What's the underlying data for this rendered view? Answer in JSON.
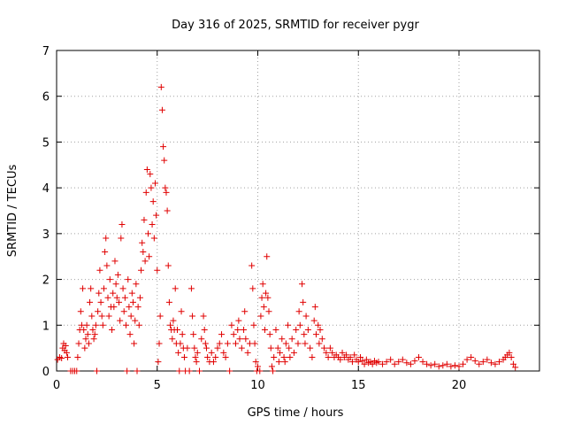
{
  "chart_data": {
    "type": "scatter",
    "title": "Day 316 of 2025, SRMTID for receiver pygr",
    "xlabel": "GPS time / hours",
    "ylabel": "SRMTID / TECUs",
    "xlim": [
      0,
      24
    ],
    "ylim": [
      0,
      7
    ],
    "xticks": [
      "0",
      "5",
      "10",
      "15",
      "20"
    ],
    "yticks": [
      "0",
      "1",
      "2",
      "3",
      "4",
      "5",
      "6",
      "7"
    ],
    "grid": true,
    "marker": "+",
    "color": "#e00000",
    "series": [
      {
        "name": "SRMTID",
        "points": [
          [
            0.05,
            0.25
          ],
          [
            0.15,
            0.3
          ],
          [
            0.25,
            0.28
          ],
          [
            0.3,
            0.5
          ],
          [
            0.35,
            0.6
          ],
          [
            0.4,
            0.45
          ],
          [
            0.45,
            0.55
          ],
          [
            0.5,
            0.4
          ],
          [
            0.55,
            0.3
          ],
          [
            0.7,
            0.0
          ],
          [
            0.8,
            0.0
          ],
          [
            0.9,
            0.0
          ],
          [
            1.0,
            0.0
          ],
          [
            1.05,
            0.3
          ],
          [
            1.1,
            0.6
          ],
          [
            1.15,
            0.9
          ],
          [
            1.2,
            1.3
          ],
          [
            1.25,
            1.0
          ],
          [
            1.3,
            1.8
          ],
          [
            1.35,
            0.9
          ],
          [
            1.4,
            0.5
          ],
          [
            1.45,
            0.7
          ],
          [
            1.5,
            1.0
          ],
          [
            1.55,
            0.8
          ],
          [
            1.6,
            0.6
          ],
          [
            1.65,
            1.5
          ],
          [
            1.7,
            1.8
          ],
          [
            1.75,
            1.2
          ],
          [
            1.8,
            0.9
          ],
          [
            1.85,
            0.7
          ],
          [
            1.9,
            0.8
          ],
          [
            1.95,
            1.0
          ],
          [
            2.0,
            0.0
          ],
          [
            2.05,
            1.3
          ],
          [
            2.1,
            1.7
          ],
          [
            2.15,
            2.2
          ],
          [
            2.2,
            1.5
          ],
          [
            2.25,
            1.2
          ],
          [
            2.3,
            1.0
          ],
          [
            2.35,
            1.8
          ],
          [
            2.4,
            2.6
          ],
          [
            2.45,
            2.9
          ],
          [
            2.5,
            2.3
          ],
          [
            2.55,
            1.6
          ],
          [
            2.6,
            1.2
          ],
          [
            2.65,
            2.0
          ],
          [
            2.7,
            1.4
          ],
          [
            2.75,
            0.9
          ],
          [
            2.8,
            1.7
          ],
          [
            2.85,
            1.4
          ],
          [
            2.9,
            2.4
          ],
          [
            2.95,
            1.9
          ],
          [
            3.0,
            1.6
          ],
          [
            3.05,
            2.1
          ],
          [
            3.1,
            1.5
          ],
          [
            3.15,
            1.1
          ],
          [
            3.2,
            2.9
          ],
          [
            3.25,
            3.2
          ],
          [
            3.3,
            1.8
          ],
          [
            3.35,
            1.3
          ],
          [
            3.4,
            1.6
          ],
          [
            3.45,
            1.0
          ],
          [
            3.5,
            0.0
          ],
          [
            3.55,
            2.0
          ],
          [
            3.6,
            1.4
          ],
          [
            3.65,
            0.8
          ],
          [
            3.7,
            1.2
          ],
          [
            3.75,
            1.7
          ],
          [
            3.8,
            1.5
          ],
          [
            3.85,
            0.6
          ],
          [
            3.9,
            1.1
          ],
          [
            3.95,
            1.9
          ],
          [
            4.0,
            0.0
          ],
          [
            4.05,
            1.4
          ],
          [
            4.1,
            1.0
          ],
          [
            4.15,
            1.6
          ],
          [
            4.2,
            2.2
          ],
          [
            4.25,
            2.8
          ],
          [
            4.3,
            2.6
          ],
          [
            4.35,
            3.3
          ],
          [
            4.4,
            2.4
          ],
          [
            4.45,
            3.9
          ],
          [
            4.5,
            4.4
          ],
          [
            4.55,
            3.0
          ],
          [
            4.6,
            2.5
          ],
          [
            4.65,
            4.3
          ],
          [
            4.7,
            4.0
          ],
          [
            4.75,
            3.2
          ],
          [
            4.8,
            3.7
          ],
          [
            4.85,
            2.9
          ],
          [
            4.9,
            4.1
          ],
          [
            4.95,
            3.4
          ],
          [
            5.0,
            2.2
          ],
          [
            5.05,
            0.2
          ],
          [
            5.1,
            0.6
          ],
          [
            5.15,
            1.2
          ],
          [
            5.2,
            6.2
          ],
          [
            5.25,
            5.7
          ],
          [
            5.3,
            4.9
          ],
          [
            5.35,
            4.6
          ],
          [
            5.4,
            4.0
          ],
          [
            5.45,
            3.9
          ],
          [
            5.5,
            3.5
          ],
          [
            5.55,
            2.3
          ],
          [
            5.6,
            1.5
          ],
          [
            5.65,
            1.0
          ],
          [
            5.7,
            0.9
          ],
          [
            5.75,
            0.7
          ],
          [
            5.8,
            1.1
          ],
          [
            5.85,
            0.9
          ],
          [
            5.9,
            1.8
          ],
          [
            5.95,
            0.6
          ],
          [
            6.0,
            0.9
          ],
          [
            6.05,
            0.4
          ],
          [
            6.1,
            0.0
          ],
          [
            6.15,
            0.6
          ],
          [
            6.2,
            1.3
          ],
          [
            6.25,
            0.8
          ],
          [
            6.3,
            0.5
          ],
          [
            6.35,
            0.3
          ],
          [
            6.4,
            0.0
          ],
          [
            6.5,
            0.5
          ],
          [
            6.6,
            0.0
          ],
          [
            6.7,
            1.8
          ],
          [
            6.75,
            1.2
          ],
          [
            6.8,
            0.8
          ],
          [
            6.85,
            0.5
          ],
          [
            6.9,
            0.3
          ],
          [
            6.95,
            0.2
          ],
          [
            7.0,
            0.4
          ],
          [
            7.1,
            0.0
          ],
          [
            7.2,
            0.7
          ],
          [
            7.3,
            1.2
          ],
          [
            7.35,
            0.9
          ],
          [
            7.4,
            0.6
          ],
          [
            7.45,
            0.5
          ],
          [
            7.5,
            0.3
          ],
          [
            7.6,
            0.2
          ],
          [
            7.7,
            0.4
          ],
          [
            7.8,
            0.2
          ],
          [
            7.9,
            0.3
          ],
          [
            8.0,
            0.5
          ],
          [
            8.1,
            0.6
          ],
          [
            8.2,
            0.8
          ],
          [
            8.3,
            0.4
          ],
          [
            8.4,
            0.3
          ],
          [
            8.5,
            0.6
          ],
          [
            8.6,
            0.0
          ],
          [
            8.7,
            1.0
          ],
          [
            8.8,
            0.8
          ],
          [
            8.9,
            0.6
          ],
          [
            9.0,
            0.9
          ],
          [
            9.05,
            1.1
          ],
          [
            9.1,
            0.7
          ],
          [
            9.2,
            0.5
          ],
          [
            9.3,
            0.9
          ],
          [
            9.35,
            1.3
          ],
          [
            9.4,
            0.7
          ],
          [
            9.5,
            0.4
          ],
          [
            9.6,
            0.6
          ],
          [
            9.7,
            2.3
          ],
          [
            9.75,
            1.8
          ],
          [
            9.8,
            1.0
          ],
          [
            9.85,
            0.6
          ],
          [
            9.9,
            0.2
          ],
          [
            9.95,
            0.0
          ],
          [
            10.0,
            0.1
          ],
          [
            10.1,
            0.0
          ],
          [
            10.15,
            1.2
          ],
          [
            10.2,
            1.6
          ],
          [
            10.25,
            1.9
          ],
          [
            10.3,
            1.4
          ],
          [
            10.35,
            0.9
          ],
          [
            10.4,
            1.7
          ],
          [
            10.45,
            2.5
          ],
          [
            10.5,
            1.6
          ],
          [
            10.55,
            1.3
          ],
          [
            10.6,
            0.8
          ],
          [
            10.65,
            0.5
          ],
          [
            10.7,
            0.1
          ],
          [
            10.75,
            0.0
          ],
          [
            10.8,
            0.3
          ],
          [
            10.9,
            0.9
          ],
          [
            11.0,
            0.5
          ],
          [
            11.05,
            0.2
          ],
          [
            11.1,
            0.4
          ],
          [
            11.2,
            0.7
          ],
          [
            11.3,
            0.3
          ],
          [
            11.35,
            0.2
          ],
          [
            11.4,
            0.6
          ],
          [
            11.5,
            1.0
          ],
          [
            11.55,
            0.5
          ],
          [
            11.6,
            0.3
          ],
          [
            11.7,
            0.7
          ],
          [
            11.8,
            0.4
          ],
          [
            11.9,
            0.9
          ],
          [
            12.0,
            0.6
          ],
          [
            12.05,
            1.3
          ],
          [
            12.1,
            1.0
          ],
          [
            12.2,
            1.9
          ],
          [
            12.25,
            1.5
          ],
          [
            12.3,
            0.8
          ],
          [
            12.35,
            0.6
          ],
          [
            12.4,
            1.2
          ],
          [
            12.5,
            0.9
          ],
          [
            12.6,
            0.5
          ],
          [
            12.7,
            0.3
          ],
          [
            12.8,
            1.1
          ],
          [
            12.85,
            1.4
          ],
          [
            12.9,
            0.8
          ],
          [
            13.0,
            1.0
          ],
          [
            13.05,
            0.6
          ],
          [
            13.1,
            0.9
          ],
          [
            13.2,
            0.7
          ],
          [
            13.3,
            0.5
          ],
          [
            13.4,
            0.4
          ],
          [
            13.5,
            0.3
          ],
          [
            13.6,
            0.5
          ],
          [
            13.7,
            0.4
          ],
          [
            13.8,
            0.3
          ],
          [
            13.9,
            0.35
          ],
          [
            14.0,
            0.3
          ],
          [
            14.1,
            0.25
          ],
          [
            14.2,
            0.4
          ],
          [
            14.3,
            0.3
          ],
          [
            14.4,
            0.35
          ],
          [
            14.5,
            0.25
          ],
          [
            14.6,
            0.3
          ],
          [
            14.7,
            0.2
          ],
          [
            14.8,
            0.35
          ],
          [
            14.9,
            0.25
          ],
          [
            15.0,
            0.2
          ],
          [
            15.1,
            0.3
          ],
          [
            15.2,
            0.22
          ],
          [
            15.3,
            0.15
          ],
          [
            15.4,
            0.25
          ],
          [
            15.5,
            0.18
          ],
          [
            15.6,
            0.2
          ],
          [
            15.7,
            0.15
          ],
          [
            15.8,
            0.22
          ],
          [
            15.9,
            0.18
          ],
          [
            16.0,
            0.2
          ],
          [
            16.2,
            0.15
          ],
          [
            16.4,
            0.2
          ],
          [
            16.6,
            0.25
          ],
          [
            16.8,
            0.15
          ],
          [
            17.0,
            0.2
          ],
          [
            17.2,
            0.25
          ],
          [
            17.4,
            0.18
          ],
          [
            17.6,
            0.15
          ],
          [
            17.8,
            0.22
          ],
          [
            18.0,
            0.3
          ],
          [
            18.2,
            0.2
          ],
          [
            18.4,
            0.15
          ],
          [
            18.6,
            0.12
          ],
          [
            18.8,
            0.15
          ],
          [
            19.0,
            0.1
          ],
          [
            19.2,
            0.12
          ],
          [
            19.4,
            0.15
          ],
          [
            19.6,
            0.1
          ],
          [
            19.8,
            0.12
          ],
          [
            20.0,
            0.1
          ],
          [
            20.2,
            0.15
          ],
          [
            20.4,
            0.25
          ],
          [
            20.6,
            0.3
          ],
          [
            20.8,
            0.22
          ],
          [
            21.0,
            0.15
          ],
          [
            21.2,
            0.2
          ],
          [
            21.4,
            0.25
          ],
          [
            21.6,
            0.18
          ],
          [
            21.8,
            0.15
          ],
          [
            22.0,
            0.2
          ],
          [
            22.2,
            0.25
          ],
          [
            22.3,
            0.3
          ],
          [
            22.4,
            0.35
          ],
          [
            22.5,
            0.4
          ],
          [
            22.6,
            0.3
          ],
          [
            22.7,
            0.15
          ],
          [
            22.8,
            0.08
          ]
        ]
      }
    ]
  }
}
